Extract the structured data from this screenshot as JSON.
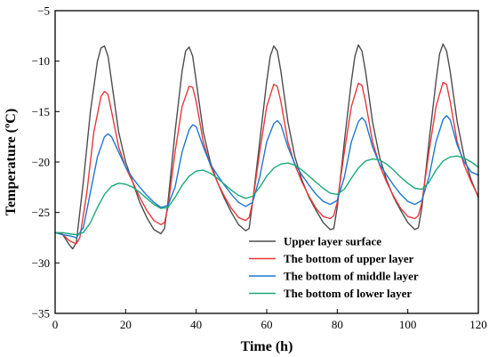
{
  "chart_data": {
    "type": "line",
    "xlabel": "Time (h)",
    "ylabel": "Temperature (ºC)",
    "xlim": [
      0,
      120
    ],
    "ylim": [
      -35,
      -5
    ],
    "xticks": [
      0,
      20,
      40,
      60,
      80,
      100,
      120
    ],
    "yticks": [
      -35,
      -30,
      -25,
      -20,
      -15,
      -10,
      -5
    ],
    "xtick_labels": [
      "0",
      "20",
      "40",
      "60",
      "80",
      "100",
      "120"
    ],
    "ytick_labels": [
      "−35",
      "−30",
      "−25",
      "−20",
      "−15",
      "−10",
      "−5"
    ],
    "grid": false,
    "legend_position": "bottom-right",
    "series": [
      {
        "name": "Upper layer surface",
        "color": "#4d4d4d",
        "points": [
          [
            0,
            -27
          ],
          [
            2,
            -27.1
          ],
          [
            4,
            -28.2
          ],
          [
            5,
            -28.6
          ],
          [
            6,
            -28
          ],
          [
            8,
            -22
          ],
          [
            10,
            -15
          ],
          [
            12,
            -10
          ],
          [
            13,
            -8.7
          ],
          [
            14,
            -8.5
          ],
          [
            15,
            -9.5
          ],
          [
            16,
            -12
          ],
          [
            18,
            -17
          ],
          [
            20,
            -20
          ],
          [
            22,
            -22
          ],
          [
            24,
            -24
          ],
          [
            26,
            -25.5
          ],
          [
            28,
            -26.7
          ],
          [
            30,
            -27.1
          ],
          [
            31,
            -26.6
          ],
          [
            32,
            -24
          ],
          [
            34,
            -17
          ],
          [
            36,
            -11
          ],
          [
            37,
            -9
          ],
          [
            38,
            -8.6
          ],
          [
            39,
            -9.5
          ],
          [
            40,
            -12
          ],
          [
            42,
            -17
          ],
          [
            44,
            -20
          ],
          [
            46,
            -22
          ],
          [
            48,
            -23.6
          ],
          [
            50,
            -25
          ],
          [
            52,
            -26.2
          ],
          [
            54,
            -26.8
          ],
          [
            55,
            -26.6
          ],
          [
            56,
            -24
          ],
          [
            58,
            -18
          ],
          [
            60,
            -12
          ],
          [
            61,
            -9.5
          ],
          [
            62,
            -8.5
          ],
          [
            63,
            -9
          ],
          [
            64,
            -11
          ],
          [
            66,
            -16
          ],
          [
            68,
            -19.5
          ],
          [
            70,
            -21.8
          ],
          [
            72,
            -23.5
          ],
          [
            74,
            -24.8
          ],
          [
            76,
            -26
          ],
          [
            78,
            -26.7
          ],
          [
            79,
            -26.6
          ],
          [
            80,
            -24.5
          ],
          [
            82,
            -18
          ],
          [
            84,
            -12
          ],
          [
            85,
            -9.5
          ],
          [
            86,
            -8.4
          ],
          [
            87,
            -9
          ],
          [
            88,
            -11
          ],
          [
            90,
            -16
          ],
          [
            92,
            -19.5
          ],
          [
            94,
            -21.8
          ],
          [
            96,
            -23.5
          ],
          [
            98,
            -24.8
          ],
          [
            100,
            -26
          ],
          [
            102,
            -26.7
          ],
          [
            103,
            -26.5
          ],
          [
            104,
            -24.5
          ],
          [
            106,
            -18
          ],
          [
            108,
            -12
          ],
          [
            109,
            -9.3
          ],
          [
            110,
            -8.3
          ],
          [
            111,
            -9
          ],
          [
            112,
            -11
          ],
          [
            114,
            -16
          ],
          [
            116,
            -19.5
          ],
          [
            118,
            -21.8
          ],
          [
            120,
            -23.5
          ]
        ]
      },
      {
        "name": "The bottom of upper layer",
        "color": "#e8393b",
        "points": [
          [
            0,
            -27
          ],
          [
            2,
            -27.1
          ],
          [
            4,
            -27.8
          ],
          [
            6,
            -28.1
          ],
          [
            7,
            -27.5
          ],
          [
            9,
            -23
          ],
          [
            11,
            -17
          ],
          [
            13,
            -13.5
          ],
          [
            14,
            -13
          ],
          [
            15,
            -13.3
          ],
          [
            16,
            -15
          ],
          [
            18,
            -18.5
          ],
          [
            20,
            -20.5
          ],
          [
            22,
            -22
          ],
          [
            24,
            -23.5
          ],
          [
            26,
            -24.8
          ],
          [
            28,
            -25.8
          ],
          [
            30,
            -26.2
          ],
          [
            31,
            -26
          ],
          [
            32,
            -24.5
          ],
          [
            34,
            -19
          ],
          [
            36,
            -14.5
          ],
          [
            38,
            -12.5
          ],
          [
            39,
            -12.6
          ],
          [
            40,
            -14
          ],
          [
            42,
            -18
          ],
          [
            44,
            -20.3
          ],
          [
            46,
            -22
          ],
          [
            48,
            -23.4
          ],
          [
            50,
            -24.6
          ],
          [
            52,
            -25.5
          ],
          [
            54,
            -25.8
          ],
          [
            55,
            -25.5
          ],
          [
            56,
            -24
          ],
          [
            58,
            -19
          ],
          [
            60,
            -14.5
          ],
          [
            62,
            -12.3
          ],
          [
            63,
            -12.5
          ],
          [
            64,
            -14
          ],
          [
            66,
            -18
          ],
          [
            68,
            -20.3
          ],
          [
            70,
            -22
          ],
          [
            72,
            -23.4
          ],
          [
            74,
            -24.6
          ],
          [
            76,
            -25.4
          ],
          [
            78,
            -25.6
          ],
          [
            79,
            -25.3
          ],
          [
            80,
            -24
          ],
          [
            82,
            -19
          ],
          [
            84,
            -14.5
          ],
          [
            86,
            -12.2
          ],
          [
            87,
            -12.4
          ],
          [
            88,
            -14
          ],
          [
            90,
            -18
          ],
          [
            92,
            -20.3
          ],
          [
            94,
            -22
          ],
          [
            96,
            -23.4
          ],
          [
            98,
            -24.6
          ],
          [
            100,
            -25.4
          ],
          [
            102,
            -25.6
          ],
          [
            103,
            -25.3
          ],
          [
            104,
            -24
          ],
          [
            106,
            -19
          ],
          [
            108,
            -14.5
          ],
          [
            110,
            -12.1
          ],
          [
            111,
            -12.3
          ],
          [
            112,
            -14
          ],
          [
            114,
            -18
          ],
          [
            116,
            -20.3
          ],
          [
            118,
            -22
          ],
          [
            120,
            -23.4
          ]
        ]
      },
      {
        "name": "The bottom of middle layer",
        "color": "#1f77d0",
        "points": [
          [
            0,
            -27
          ],
          [
            2,
            -27.2
          ],
          [
            4,
            -27.3
          ],
          [
            6,
            -27.5
          ],
          [
            8,
            -26.5
          ],
          [
            10,
            -23
          ],
          [
            12,
            -19.5
          ],
          [
            14,
            -17.5
          ],
          [
            15,
            -17.2
          ],
          [
            16,
            -17.5
          ],
          [
            18,
            -19
          ],
          [
            20,
            -20.5
          ],
          [
            22,
            -21.6
          ],
          [
            24,
            -22.5
          ],
          [
            26,
            -23.3
          ],
          [
            28,
            -24
          ],
          [
            30,
            -24.5
          ],
          [
            32,
            -24.3
          ],
          [
            34,
            -22.5
          ],
          [
            36,
            -19
          ],
          [
            38,
            -16.8
          ],
          [
            39,
            -16.3
          ],
          [
            40,
            -16.5
          ],
          [
            42,
            -18.5
          ],
          [
            44,
            -20.2
          ],
          [
            46,
            -21.3
          ],
          [
            48,
            -22.3
          ],
          [
            50,
            -23.2
          ],
          [
            52,
            -24
          ],
          [
            54,
            -24.4
          ],
          [
            56,
            -24
          ],
          [
            58,
            -21.5
          ],
          [
            60,
            -18
          ],
          [
            62,
            -16.2
          ],
          [
            63,
            -15.9
          ],
          [
            64,
            -16.3
          ],
          [
            66,
            -18.5
          ],
          [
            68,
            -20.2
          ],
          [
            70,
            -21.3
          ],
          [
            72,
            -22.3
          ],
          [
            74,
            -23.2
          ],
          [
            76,
            -23.9
          ],
          [
            78,
            -24.2
          ],
          [
            80,
            -23.8
          ],
          [
            82,
            -21.5
          ],
          [
            84,
            -18
          ],
          [
            86,
            -16
          ],
          [
            87,
            -15.6
          ],
          [
            88,
            -16
          ],
          [
            90,
            -18.5
          ],
          [
            92,
            -20.2
          ],
          [
            94,
            -21.3
          ],
          [
            96,
            -22.3
          ],
          [
            98,
            -23.2
          ],
          [
            100,
            -23.9
          ],
          [
            102,
            -24.2
          ],
          [
            104,
            -23.8
          ],
          [
            106,
            -21.5
          ],
          [
            108,
            -18
          ],
          [
            110,
            -15.8
          ],
          [
            111,
            -15.4
          ],
          [
            112,
            -15.8
          ],
          [
            114,
            -18.3
          ],
          [
            116,
            -20
          ],
          [
            118,
            -21
          ],
          [
            120,
            -21.3
          ]
        ]
      },
      {
        "name": "The bottom of lower layer",
        "color": "#1aaa78",
        "points": [
          [
            0,
            -27
          ],
          [
            2,
            -27
          ],
          [
            4,
            -27.1
          ],
          [
            6,
            -27.2
          ],
          [
            8,
            -27
          ],
          [
            10,
            -26
          ],
          [
            12,
            -24.5
          ],
          [
            14,
            -23.2
          ],
          [
            16,
            -22.4
          ],
          [
            18,
            -22.1
          ],
          [
            20,
            -22.2
          ],
          [
            22,
            -22.5
          ],
          [
            24,
            -23
          ],
          [
            26,
            -23.6
          ],
          [
            28,
            -24.2
          ],
          [
            30,
            -24.6
          ],
          [
            32,
            -24.5
          ],
          [
            34,
            -23.5
          ],
          [
            36,
            -22.3
          ],
          [
            38,
            -21.4
          ],
          [
            40,
            -20.9
          ],
          [
            42,
            -20.8
          ],
          [
            44,
            -21.1
          ],
          [
            46,
            -21.6
          ],
          [
            48,
            -22.2
          ],
          [
            50,
            -22.8
          ],
          [
            52,
            -23.3
          ],
          [
            54,
            -23.6
          ],
          [
            56,
            -23.4
          ],
          [
            58,
            -22.5
          ],
          [
            60,
            -21.4
          ],
          [
            62,
            -20.6
          ],
          [
            64,
            -20.2
          ],
          [
            66,
            -20.1
          ],
          [
            68,
            -20.3
          ],
          [
            70,
            -20.8
          ],
          [
            72,
            -21.4
          ],
          [
            74,
            -22
          ],
          [
            76,
            -22.6
          ],
          [
            78,
            -23.1
          ],
          [
            80,
            -23.2
          ],
          [
            82,
            -22.7
          ],
          [
            84,
            -21.6
          ],
          [
            86,
            -20.6
          ],
          [
            88,
            -19.9
          ],
          [
            90,
            -19.7
          ],
          [
            92,
            -19.8
          ],
          [
            94,
            -20.2
          ],
          [
            96,
            -20.8
          ],
          [
            98,
            -21.5
          ],
          [
            100,
            -22.1
          ],
          [
            102,
            -22.6
          ],
          [
            104,
            -22.7
          ],
          [
            106,
            -22
          ],
          [
            108,
            -20.8
          ],
          [
            110,
            -19.9
          ],
          [
            112,
            -19.5
          ],
          [
            114,
            -19.4
          ],
          [
            116,
            -19.6
          ],
          [
            118,
            -20
          ],
          [
            120,
            -20.5
          ]
        ]
      }
    ]
  }
}
